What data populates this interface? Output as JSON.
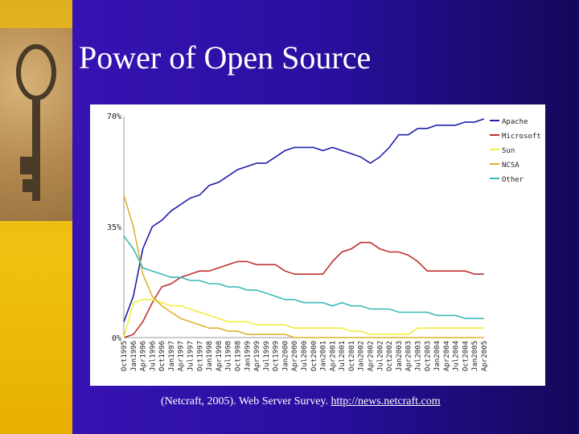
{
  "slide": {
    "title": "Power of Open Source",
    "citation_text": "(Netcraft, 2005). Web Server Survey.",
    "citation_url": "http://news.netcraft.com"
  },
  "colors": {
    "background": "#2a0fa0",
    "title": "#ffffff",
    "Apache": "#1f1fa8",
    "Microsoft": "#c03030",
    "Sun": "#f2ee3c",
    "NCSA": "#e0b030",
    "Other": "#3bb8b8"
  },
  "chart_data": {
    "type": "line",
    "title": "",
    "xlabel": "",
    "ylabel": "",
    "ylim": [
      0,
      70
    ],
    "y_tick_labels": [
      "0%",
      "35%",
      "70%"
    ],
    "y_ticks": [
      0,
      35,
      70
    ],
    "grid": false,
    "legend_position": "top-right",
    "x": [
      "Oct1995",
      "Jan1996",
      "Apr1996",
      "Jul1996",
      "Oct1996",
      "Jan1997",
      "Apr1997",
      "Jul1997",
      "Oct1997",
      "Jan1998",
      "Apr1998",
      "Jul1998",
      "Oct1998",
      "Jan1999",
      "Apr1999",
      "Jul1999",
      "Oct1999",
      "Jan2000",
      "Apr2000",
      "Jul2000",
      "Oct2000",
      "Jan2001",
      "Apr2001",
      "Jul2001",
      "Oct2001",
      "Jan2002",
      "Apr2002",
      "Jul2002",
      "Oct2002",
      "Jan2003",
      "Apr2003",
      "Jul2003",
      "Oct2003",
      "Jan2004",
      "Apr2004",
      "Jul2004",
      "Oct2004",
      "Jan2005",
      "Apr2005"
    ],
    "series": [
      {
        "name": "Apache",
        "values": [
          5,
          13,
          28,
          35,
          37,
          40,
          42,
          44,
          45,
          48,
          49,
          51,
          53,
          54,
          55,
          55,
          57,
          59,
          60,
          60,
          60,
          59,
          60,
          59,
          58,
          57,
          55,
          57,
          60,
          64,
          64,
          66,
          66,
          67,
          67,
          67,
          68,
          68,
          69
        ]
      },
      {
        "name": "Microsoft",
        "values": [
          0,
          1,
          5,
          11,
          16,
          17,
          19,
          20,
          21,
          21,
          22,
          23,
          24,
          24,
          23,
          23,
          23,
          21,
          20,
          20,
          20,
          20,
          24,
          27,
          28,
          30,
          30,
          28,
          27,
          27,
          26,
          24,
          21,
          21,
          21,
          21,
          21,
          20,
          20
        ]
      },
      {
        "name": "Sun",
        "values": [
          0,
          11,
          12,
          12,
          11,
          10,
          10,
          9,
          8,
          7,
          6,
          5,
          5,
          5,
          4,
          4,
          4,
          4,
          3,
          3,
          3,
          3,
          3,
          3,
          2,
          2,
          1,
          1,
          1,
          1,
          1,
          3,
          3,
          3,
          3,
          3,
          3,
          3,
          3
        ]
      },
      {
        "name": "NCSA",
        "values": [
          45,
          35,
          20,
          13,
          10,
          8,
          6,
          5,
          4,
          3,
          3,
          2,
          2,
          1,
          1,
          1,
          1,
          1,
          0,
          0,
          0,
          0,
          0,
          0,
          0,
          0,
          0,
          0,
          0,
          0,
          0,
          0,
          0,
          0,
          0,
          0,
          0,
          0,
          0
        ]
      },
      {
        "name": "Other",
        "values": [
          32,
          28,
          22,
          21,
          20,
          19,
          19,
          18,
          18,
          17,
          17,
          16,
          16,
          15,
          15,
          14,
          13,
          12,
          12,
          11,
          11,
          11,
          10,
          11,
          10,
          10,
          9,
          9,
          9,
          8,
          8,
          8,
          8,
          7,
          7,
          7,
          6,
          6,
          6
        ]
      }
    ]
  }
}
